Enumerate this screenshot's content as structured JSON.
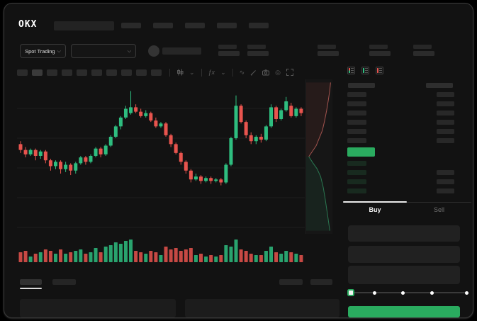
{
  "app": {
    "logo": "OKX"
  },
  "colors": {
    "accent_green": "#2aab5f",
    "candle_up": "#2ebd7f",
    "candle_down": "#e8544e",
    "depth_ask_line": "#c4635c",
    "depth_bid_line": "#2f8f5f"
  },
  "nav": {
    "item_count": 5
  },
  "subheader": {
    "market_selector": "Spot Trading",
    "stat_group_positions": [
      302,
      343,
      442,
      515,
      577
    ]
  },
  "toolbar": {
    "timeframe_count": 10,
    "selected_timeframe_index": 1,
    "icons": [
      "candlestick-type-icon",
      "chevron-down-icon",
      "indicators-fx-icon",
      "chevron-down-icon",
      "line-tool-icon",
      "draw-tool-icon",
      "camera-icon",
      "timer-icon",
      "fullscreen-icon"
    ]
  },
  "order_book": {
    "view_icons": [
      "book-combined-icon",
      "book-bids-icon",
      "book-asks-icon"
    ],
    "ask_rows": 6,
    "bid_rows": 4,
    "bid_right_bars": [
      false,
      true,
      true,
      true
    ]
  },
  "trade_panel": {
    "tabs": {
      "buy": "Buy",
      "sell": "Sell"
    },
    "active_tab": "Buy",
    "input_count": 3,
    "slider_steps": 5,
    "slider_value_index": 0
  },
  "chart_data": {
    "type": "candlestick",
    "units": "normalized 0-100 (price axis labels not visible in screenshot)",
    "series_format": [
      "open",
      "high",
      "low",
      "close",
      "volume"
    ],
    "candles": [
      [
        58,
        60,
        52,
        54,
        35
      ],
      [
        54,
        56,
        49,
        51,
        40
      ],
      [
        51,
        55,
        50,
        54,
        20
      ],
      [
        54,
        55,
        47,
        50,
        30
      ],
      [
        50,
        54,
        48,
        53,
        35
      ],
      [
        53,
        54,
        45,
        47,
        45
      ],
      [
        47,
        48,
        40,
        43,
        40
      ],
      [
        43,
        47,
        41,
        46,
        30
      ],
      [
        46,
        47,
        38,
        41,
        45
      ],
      [
        41,
        46,
        39,
        44,
        30
      ],
      [
        44,
        45,
        37,
        40,
        35
      ],
      [
        40,
        46,
        38,
        45,
        40
      ],
      [
        45,
        50,
        44,
        49,
        45
      ],
      [
        49,
        50,
        44,
        46,
        30
      ],
      [
        46,
        51,
        45,
        50,
        35
      ],
      [
        50,
        56,
        49,
        55,
        50
      ],
      [
        55,
        56,
        49,
        51,
        35
      ],
      [
        51,
        58,
        50,
        57,
        55
      ],
      [
        57,
        64,
        56,
        63,
        60
      ],
      [
        63,
        71,
        62,
        70,
        70
      ],
      [
        70,
        77,
        68,
        76,
        65
      ],
      [
        76,
        84,
        75,
        82,
        75
      ],
      [
        79,
        94,
        78,
        83,
        80
      ],
      [
        83,
        85,
        79,
        80,
        40
      ],
      [
        80,
        82,
        76,
        77,
        35
      ],
      [
        77,
        81,
        76,
        79,
        30
      ],
      [
        79,
        80,
        73,
        74,
        40
      ],
      [
        74,
        76,
        69,
        70,
        35
      ],
      [
        70,
        73,
        69,
        72,
        25
      ],
      [
        72,
        73,
        63,
        64,
        55
      ],
      [
        64,
        65,
        56,
        58,
        45
      ],
      [
        58,
        59,
        51,
        52,
        50
      ],
      [
        52,
        53,
        44,
        46,
        40
      ],
      [
        46,
        47,
        38,
        40,
        45
      ],
      [
        40,
        41,
        32,
        34,
        50
      ],
      [
        34,
        38,
        33,
        36,
        25
      ],
      [
        36,
        37,
        31,
        33,
        30
      ],
      [
        33,
        36,
        32,
        35,
        20
      ],
      [
        35,
        36,
        31,
        33,
        25
      ],
      [
        33,
        35,
        32,
        34,
        20
      ],
      [
        34,
        35,
        30,
        32,
        25
      ],
      [
        32,
        45,
        31,
        44,
        60
      ],
      [
        44,
        63,
        43,
        62,
        55
      ],
      [
        62,
        91,
        61,
        84,
        80
      ],
      [
        84,
        85,
        72,
        73,
        45
      ],
      [
        73,
        74,
        62,
        64,
        40
      ],
      [
        64,
        66,
        58,
        60,
        30
      ],
      [
        60,
        64,
        58,
        63,
        25
      ],
      [
        63,
        65,
        59,
        61,
        25
      ],
      [
        61,
        71,
        60,
        70,
        40
      ],
      [
        70,
        85,
        69,
        83,
        55
      ],
      [
        83,
        84,
        73,
        75,
        35
      ],
      [
        75,
        82,
        74,
        81,
        30
      ],
      [
        81,
        90,
        80,
        87,
        40
      ],
      [
        84,
        86,
        76,
        77,
        35
      ],
      [
        77,
        83,
        76,
        82,
        30
      ],
      [
        82,
        83,
        77,
        79,
        25
      ]
    ],
    "depth": {
      "asks": [
        [
          0.93,
          0.02
        ],
        [
          0.9,
          0.07
        ],
        [
          0.85,
          0.13
        ],
        [
          0.78,
          0.2
        ],
        [
          0.7,
          0.27
        ],
        [
          0.62,
          0.33
        ],
        [
          0.5,
          0.38
        ],
        [
          0.38,
          0.43
        ],
        [
          0.22,
          0.47
        ],
        [
          0.1,
          0.5
        ]
      ],
      "bids": [
        [
          0.1,
          0.5
        ],
        [
          0.25,
          0.54
        ],
        [
          0.42,
          0.58
        ],
        [
          0.55,
          0.63
        ],
        [
          0.65,
          0.7
        ],
        [
          0.73,
          0.78
        ],
        [
          0.8,
          0.86
        ],
        [
          0.86,
          0.93
        ],
        [
          0.9,
          0.98
        ]
      ]
    },
    "grid": "faint horizontal gridlines, no visible tick labels",
    "legend_position": "none"
  }
}
